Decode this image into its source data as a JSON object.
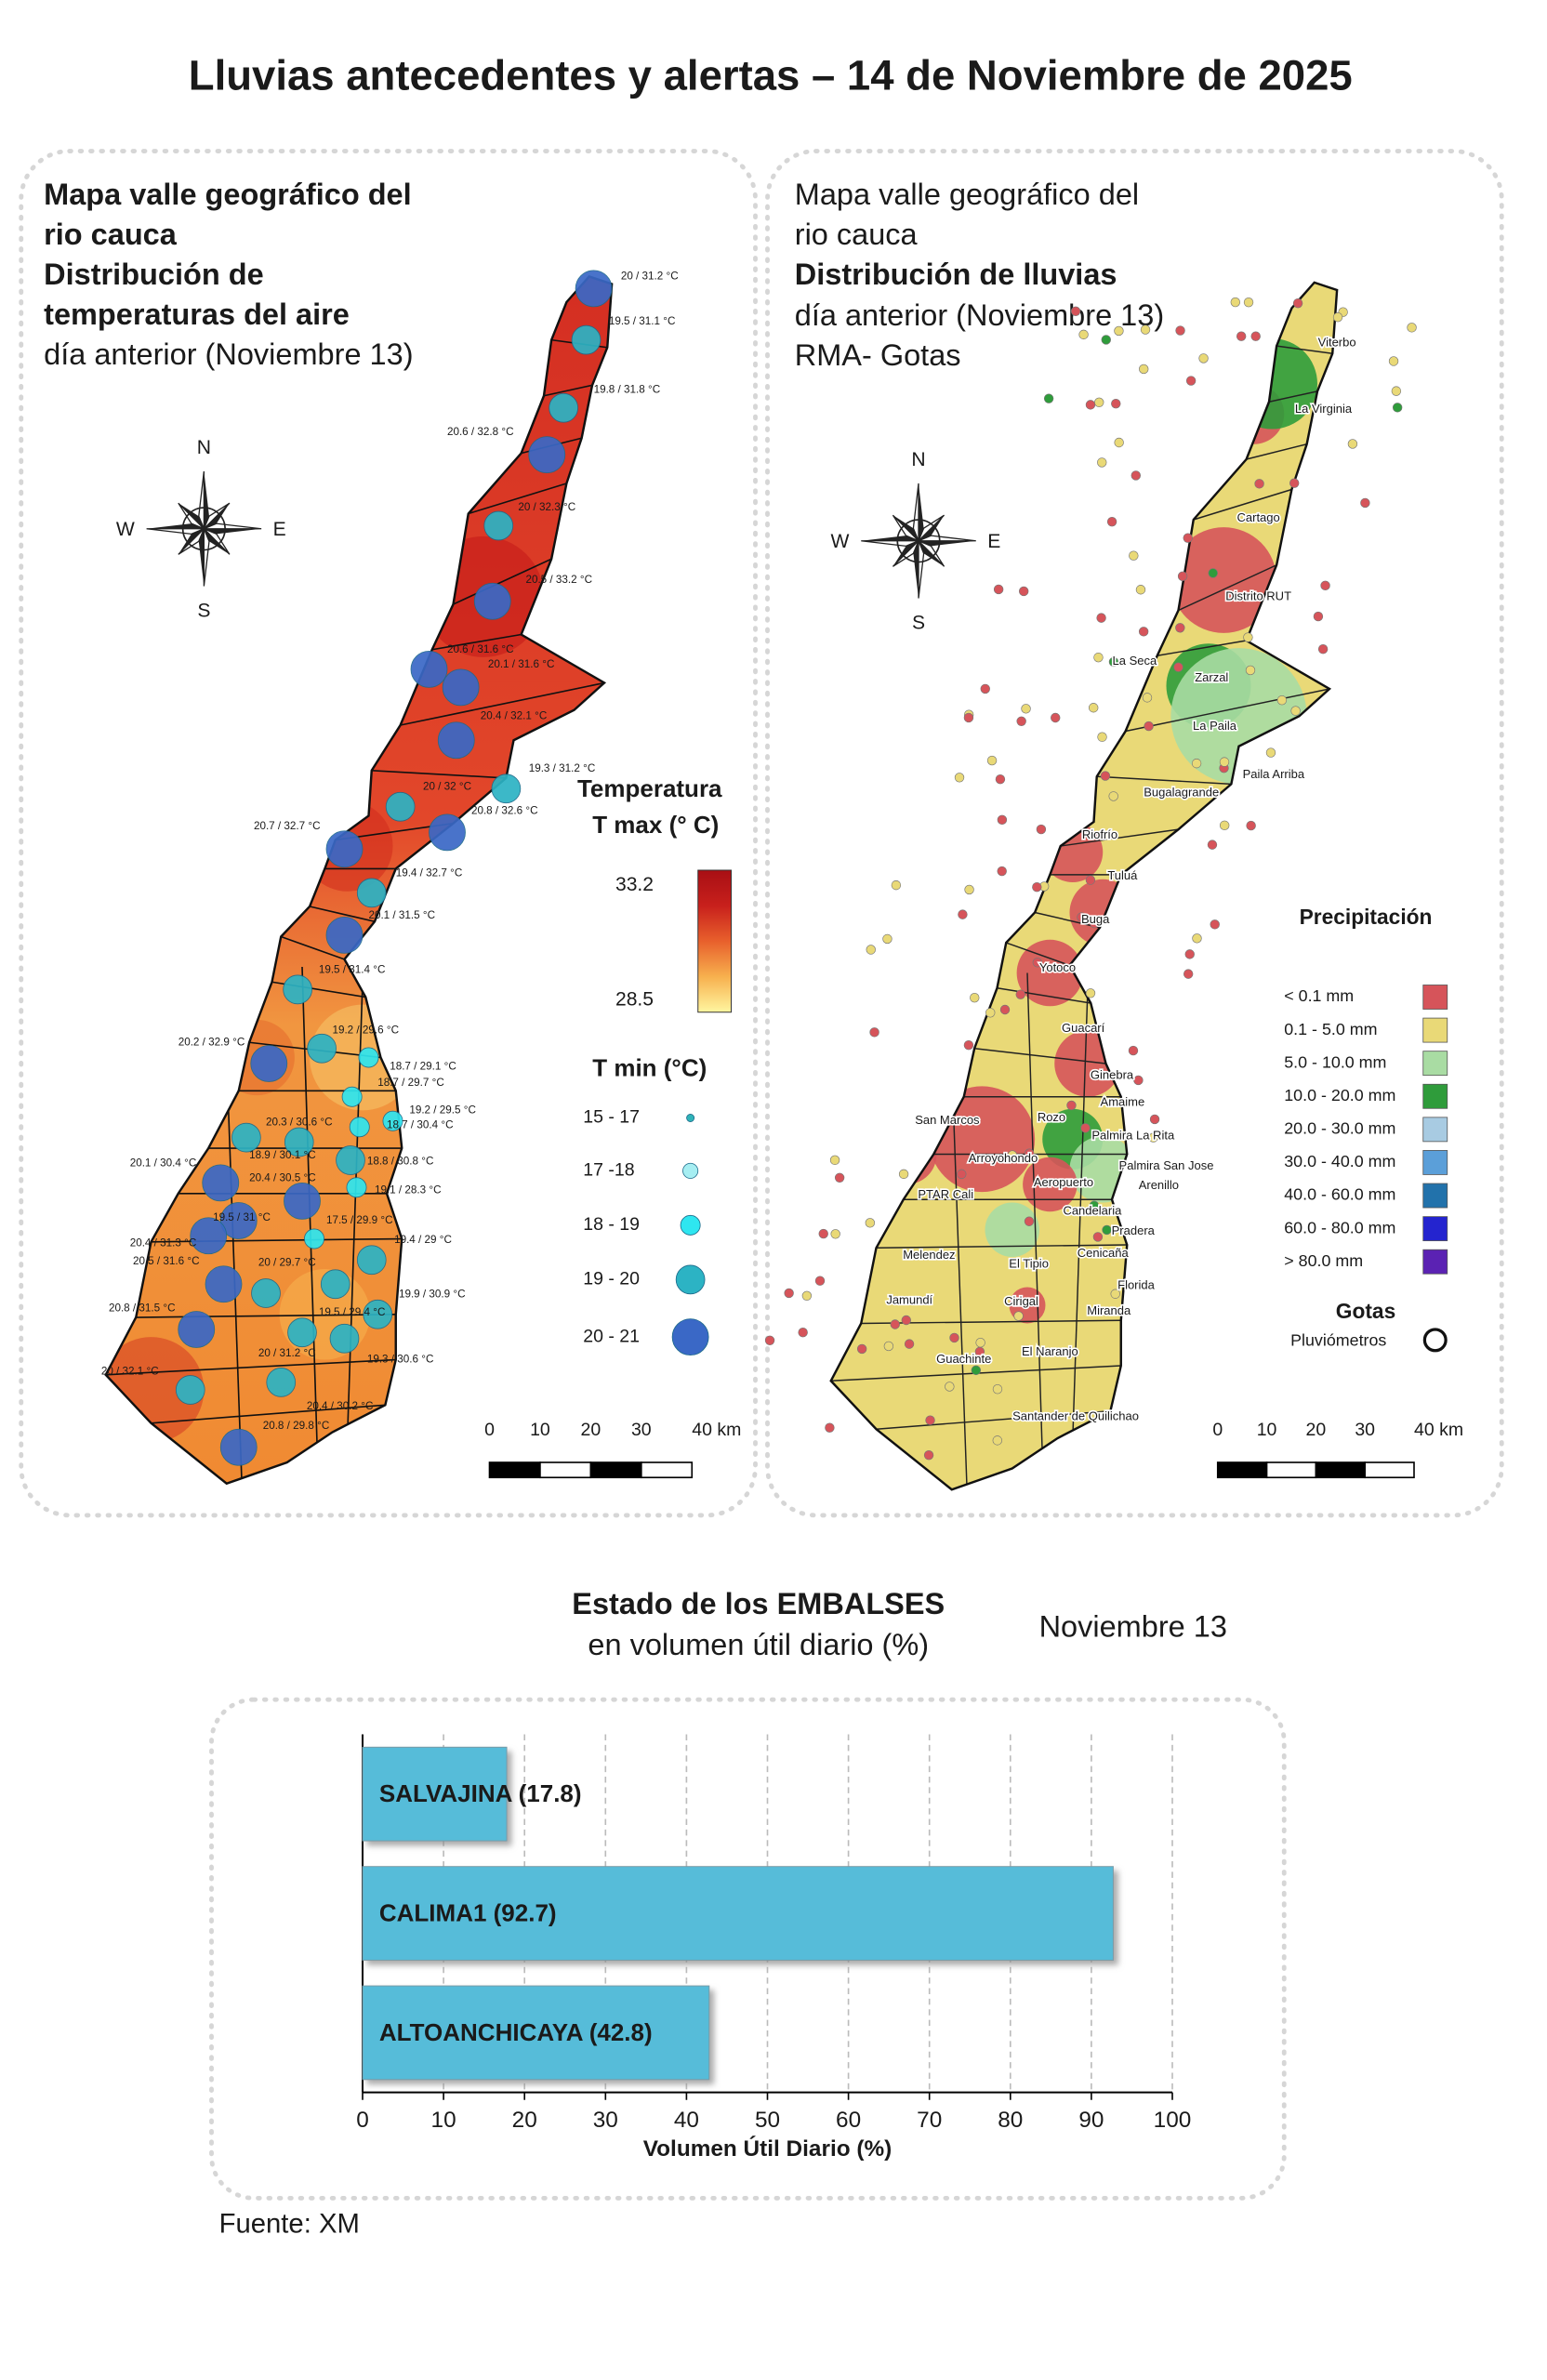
{
  "header": {
    "title": "Lluvias antecedentes y alertas – 14 de Noviembre de 2025"
  },
  "temperature_map": {
    "heading": [
      "Mapa valle geográfico del",
      "rio cauca",
      "Distribución de",
      "temperaturas del aire"
    ],
    "subheading": "día anterior (Noviembre 13)",
    "compass": {
      "n": "N",
      "s": "S",
      "e": "E",
      "w": "W"
    },
    "stations": [
      "20 / 31.2 °C",
      "19.5 / 31.1 °C",
      "19.8 / 31.8 °C",
      "20.6 / 32.8 °C",
      "20 / 32.3 °C",
      "20.5 / 33.2 °C",
      "20.6 / 31.6 °C",
      "20.1 / 31.6 °C",
      "20.4 / 32.1 °C",
      "19.3 / 31.2 °C",
      "20 / 32 °C",
      "20.8 / 32.6 °C",
      "20.7 / 32.7 °C",
      "19.4 / 32.7 °C",
      "20.1 / 31.5 °C",
      "19.5 / 31.4 °C",
      "19.2 / 29.6 °C",
      "20.2 / 32.9 °C",
      "18.7 / 29.1 °C",
      "18.7 / 29.7 °C",
      "19.2 / 29.5 °C",
      "20.3 / 30.6 °C",
      "18.7 / 30.4 °C",
      "18.9 / 30.1 °C",
      "18.8 / 30.8 °C",
      "20.1 / 30.4 °C",
      "20.4 / 30.5 °C",
      "19.1 / 28.3 °C",
      "19.5 / 31 °C",
      "17.5 / 29.9 °C",
      "19.4 / 29 °C",
      "20.4 / 31.3 °C",
      "20.5 / 31.6 °C",
      "20 / 29.7 °C",
      "20.8 / 31.5 °C",
      "19.9 / 30.9 °C",
      "19.5 / 29.4 °C",
      "20 / 31.2 °C",
      "19.3 / 30.6 °C",
      "20 / 32.1 °C",
      "20.4 / 30.2 °C",
      "20.8 / 29.8 °C"
    ],
    "tmax_legend": {
      "title": "Temperatura",
      "subtitle": "T max (° C)",
      "max": 33.2,
      "min": 28.5,
      "colors": [
        "#fff6a0",
        "#f7b04e",
        "#e8602c",
        "#c8201c",
        "#a80f14"
      ]
    },
    "tmin_legend": {
      "title": "T min (°C)",
      "classes": [
        "15 - 17",
        "17 -18",
        "18 - 19",
        "19 - 20",
        "20 - 21"
      ],
      "colors": [
        "#2fb3b8",
        "#a6eef2",
        "#2ee6f0",
        "#2cb3c4",
        "#3a68c6"
      ]
    },
    "scale_bar": [
      0,
      10,
      20,
      30,
      {
        "value": 40,
        "label": "40 km"
      }
    ]
  },
  "rain_map": {
    "heading": [
      "Mapa valle geográfico del",
      "rio cauca"
    ],
    "bold_heading": "Distribución de lluvias",
    "subheading": [
      "día anterior (Noviembre 13)",
      "RMA- Gotas"
    ],
    "compass": {
      "n": "N",
      "s": "S",
      "e": "E",
      "w": "W"
    },
    "towns": [
      "Viterbo",
      "La Virginia",
      "Cartago",
      "Distrito RUT",
      "La Seca",
      "Zarzal",
      "La Paila",
      "Paila Arriba",
      "Bugalagrande",
      "Riofrío",
      "Tuluá",
      "Buga",
      "Yotoco",
      "Guacarí",
      "Ginebra",
      "Amaime",
      "Rozo",
      "San Marcos",
      "Palmira La Rita",
      "Arroyohondo",
      "Palmira San Jose",
      "Aeropuerto",
      "Arenillo",
      "PTAR Cali",
      "Candelaria",
      "Pradera",
      "Melendez",
      "Cenicaña",
      "El Tipio",
      "Florida",
      "Jamundí",
      "Cirigal",
      "Miranda",
      "El Naranjo",
      "Guachinte",
      "Santander de Quilichao"
    ],
    "legend": {
      "title": "Precipitación",
      "classes": [
        "< 0.1 mm",
        "0.1 - 5.0 mm",
        "5.0 - 10.0 mm",
        "10.0 - 20.0 mm",
        "20.0 - 30.0 mm",
        "30.0 - 40.0 mm",
        "40.0 - 60.0 mm",
        "60.0 - 80.0 mm",
        "> 80.0 mm"
      ],
      "colors": [
        "#d6545a",
        "#e9d977",
        "#a9dca3",
        "#2f9c3b",
        "#a8cbe2",
        "#5b9fd9",
        "#2272ab",
        "#2424cf",
        "#5b22b3"
      ]
    },
    "gauges": {
      "title": "Gotas",
      "label": "Pluviómetros"
    },
    "scale_bar": [
      0,
      10,
      20,
      30,
      {
        "value": 40,
        "label": "40 km"
      }
    ]
  },
  "chart_data": {
    "type": "bar",
    "orientation": "horizontal",
    "title": "Estado de los EMBALSES",
    "subtitle": "en volumen útil diario (%)",
    "date": "Noviembre 13",
    "values": [
      17.8,
      92.7,
      42.8
    ],
    "value_labels": [
      "SALVAJINA (17.8)",
      "CALIMA1 (92.7)",
      "ALTOANCHICAYA (42.8)"
    ],
    "color": "#56bcd9",
    "xlim": [
      0,
      100
    ],
    "xticks": [
      0,
      10,
      20,
      30,
      40,
      50,
      60,
      70,
      80,
      90,
      100
    ],
    "xlabel": "Volumen Útil Diario (%)",
    "grid": true
  },
  "source": "Fuente: XM"
}
